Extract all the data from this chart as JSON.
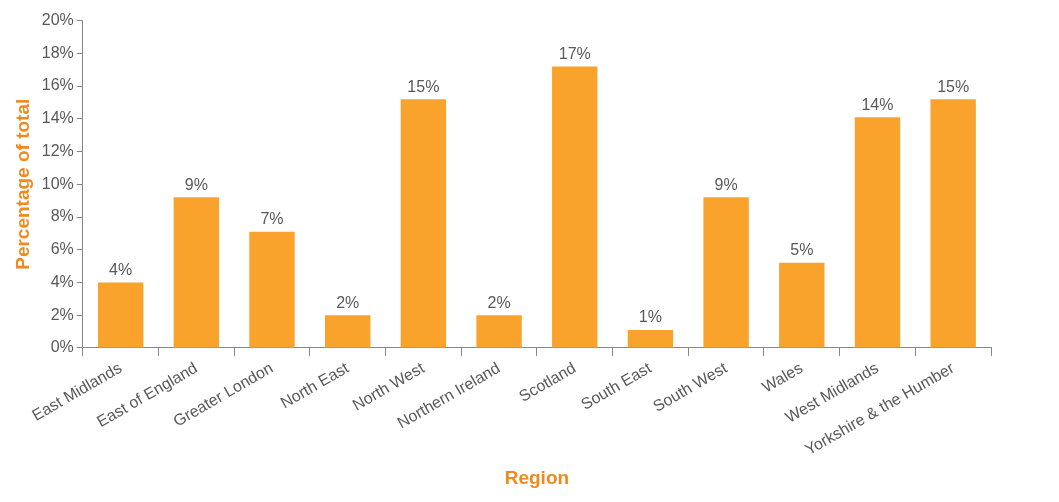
{
  "chart_data": {
    "type": "bar",
    "xlabel": "Region",
    "ylabel": "Percentage of total",
    "categories": [
      "East Midlands",
      "East of England",
      "Greater London",
      "North East",
      "North West",
      "Northern Ireland",
      "Scotland",
      "South East",
      "South West",
      "Wales",
      "West Midlands",
      "Yorkshire & the Humber"
    ],
    "values": [
      4,
      9.2,
      7.1,
      2,
      15.2,
      2,
      17.2,
      1.1,
      9.2,
      5.2,
      14.1,
      15.2
    ],
    "value_labels": [
      "4%",
      "9%",
      "7%",
      "2%",
      "15%",
      "2%",
      "17%",
      "1%",
      "9%",
      "5%",
      "14%",
      "15%"
    ],
    "color": "#f9a32c",
    "ylim": [
      0,
      20
    ],
    "yticks": [
      {
        "value": 0,
        "label": "0%"
      },
      {
        "value": 2,
        "label": "2%"
      },
      {
        "value": 4,
        "label": "4%"
      },
      {
        "value": 6,
        "label": "6%"
      },
      {
        "value": 8,
        "label": "8%"
      },
      {
        "value": 10,
        "label": "10%"
      },
      {
        "value": 12,
        "label": "12%"
      },
      {
        "value": 14,
        "label": "14%"
      },
      {
        "value": 16,
        "label": "16%"
      },
      {
        "value": 18,
        "label": "18%"
      },
      {
        "value": 20,
        "label": "20%"
      }
    ],
    "grid": false,
    "legend": false
  }
}
